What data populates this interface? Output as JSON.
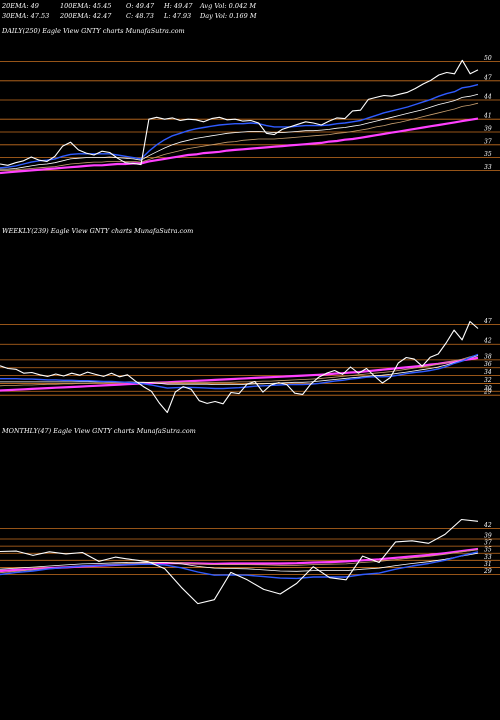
{
  "header": {
    "row1": [
      "20EMA: 49",
      "100EMA: 45.45",
      "O: 49.47",
      "H: 49.47",
      "Avg Vol: 0.042  M"
    ],
    "row2": [
      "30EMA: 47.53",
      "200EMA: 42.47",
      "C: 48.73",
      "L: 47.93",
      "Day Vol: 0.169 M"
    ]
  },
  "colors": {
    "background": "#000000",
    "price": "#ffffff",
    "ema_short": "#2f5bff",
    "ema_mid": "#ffffff",
    "ema_long": "#c8a070",
    "ema_200": "#ff40ff",
    "support_lines": "#c87020"
  },
  "chart_data": [
    {
      "type": "line",
      "title": "DAILY(250) Eagle   View  GNTY charts MunafaSutra.com",
      "ylim": [
        31.5,
        51.5
      ],
      "levels": [
        50,
        47,
        44,
        41,
        39,
        37,
        35,
        33
      ],
      "price": [
        34,
        33.8,
        34.2,
        34.5,
        35.1,
        34.6,
        34.4,
        35.2,
        36.8,
        37.4,
        36.2,
        35.7,
        35.4,
        36.0,
        35.8,
        34.9,
        34.2,
        34.1,
        33.9,
        41,
        41.3,
        41.0,
        41.2,
        40.8,
        41.0,
        40.9,
        40.6,
        41.1,
        41.3,
        40.9,
        41.0,
        40.7,
        40.8,
        40.4,
        38.8,
        38.6,
        39.4,
        39.8,
        40.2,
        40.6,
        40.4,
        40.1,
        40.7,
        41.2,
        41.1,
        42.3,
        42.4,
        44.1,
        44.4,
        44.7,
        44.6,
        44.9,
        45.2,
        45.8,
        46.5,
        47.1,
        47.9,
        48.3,
        48.1,
        50.2,
        48.1,
        48.7
      ],
      "ema_short": [
        33.4,
        33.5,
        33.7,
        34.0,
        34.3,
        34.5,
        34.6,
        34.8,
        35.2,
        35.5,
        35.6,
        35.6,
        35.6,
        35.6,
        35.6,
        35.4,
        35.2,
        35.0,
        34.8,
        36.0,
        37.0,
        37.8,
        38.4,
        38.8,
        39.2,
        39.5,
        39.7,
        39.9,
        40.1,
        40.2,
        40.3,
        40.3,
        40.4,
        40.3,
        40.0,
        39.8,
        39.8,
        39.8,
        39.9,
        40.0,
        40.0,
        40.0,
        40.1,
        40.3,
        40.4,
        40.6,
        40.8,
        41.2,
        41.6,
        42.0,
        42.3,
        42.6,
        42.9,
        43.3,
        43.7,
        44.1,
        44.6,
        45.0,
        45.3,
        45.9,
        46.1,
        46.4
      ],
      "ema_mid": [
        33.2,
        33.2,
        33.3,
        33.5,
        33.7,
        33.9,
        34.0,
        34.2,
        34.5,
        34.8,
        34.9,
        35.0,
        35.0,
        35.0,
        35.1,
        35.0,
        34.9,
        34.8,
        34.6,
        35.3,
        35.9,
        36.5,
        37.0,
        37.4,
        37.7,
        38.0,
        38.2,
        38.4,
        38.6,
        38.8,
        38.9,
        39.0,
        39.1,
        39.1,
        39.0,
        38.9,
        38.9,
        39.0,
        39.1,
        39.2,
        39.2,
        39.3,
        39.4,
        39.6,
        39.7,
        39.9,
        40.1,
        40.4,
        40.7,
        41.0,
        41.3,
        41.6,
        41.9,
        42.2,
        42.5,
        42.9,
        43.3,
        43.6,
        43.9,
        44.4,
        44.6,
        44.9
      ],
      "ema_long": [
        33.0,
        33.0,
        33.1,
        33.2,
        33.3,
        33.4,
        33.5,
        33.6,
        33.8,
        34.0,
        34.1,
        34.2,
        34.3,
        34.3,
        34.4,
        34.4,
        34.4,
        34.4,
        34.3,
        34.7,
        35.1,
        35.5,
        35.8,
        36.1,
        36.4,
        36.6,
        36.8,
        37.0,
        37.2,
        37.4,
        37.5,
        37.7,
        37.8,
        37.9,
        37.9,
        37.9,
        38.0,
        38.1,
        38.2,
        38.3,
        38.4,
        38.5,
        38.6,
        38.8,
        38.9,
        39.1,
        39.3,
        39.5,
        39.8,
        40.0,
        40.3,
        40.5,
        40.8,
        41.1,
        41.4,
        41.7,
        42.0,
        42.3,
        42.6,
        43.0,
        43.2,
        43.5
      ],
      "ema_200": [
        32.6,
        32.7,
        32.8,
        32.9,
        33.0,
        33.1,
        33.2,
        33.3,
        33.4,
        33.5,
        33.6,
        33.7,
        33.8,
        33.8,
        33.9,
        34.0,
        34.0,
        34.1,
        34.1,
        34.4,
        34.6,
        34.8,
        35.0,
        35.2,
        35.4,
        35.5,
        35.7,
        35.8,
        35.9,
        36.1,
        36.2,
        36.3,
        36.4,
        36.5,
        36.6,
        36.7,
        36.8,
        36.9,
        37.0,
        37.1,
        37.2,
        37.3,
        37.5,
        37.6,
        37.8,
        37.9,
        38.1,
        38.3,
        38.5,
        38.7,
        38.9,
        39.1,
        39.3,
        39.5,
        39.7,
        39.9,
        40.1,
        40.3,
        40.5,
        40.7,
        40.9,
        41.1
      ]
    },
    {
      "type": "line",
      "title": "WEEKLY(239) Eagle   View  GNTY charts MunafaSutra.com",
      "ylim": [
        26.5,
        52
      ],
      "levels": [
        47,
        42,
        38,
        36,
        34,
        32,
        30,
        29
      ],
      "price": [
        36.5,
        35.8,
        35.6,
        34.6,
        34.8,
        34.2,
        33.8,
        34.4,
        33.9,
        34.6,
        34.1,
        34.9,
        34.3,
        33.8,
        34.6,
        33.7,
        34.2,
        32.6,
        31.2,
        30.0,
        27.0,
        24.6,
        29.8,
        31.2,
        30.5,
        27.6,
        26.9,
        27.4,
        26.8,
        29.7,
        29.4,
        31.8,
        32.5,
        29.8,
        31.6,
        32.2,
        31.7,
        29.5,
        29.2,
        31.8,
        33.6,
        34.6,
        35.3,
        34.3,
        36.2,
        34.6,
        35.8,
        33.9,
        32.1,
        33.5,
        37.2,
        38.6,
        38.2,
        36.4,
        38.7,
        39.5,
        42.3,
        45.6,
        43.1,
        47.8,
        46.0
      ],
      "ema_short": [
        33.2,
        33.2,
        33.2,
        33.1,
        33.1,
        33.0,
        32.9,
        32.9,
        32.8,
        32.8,
        32.7,
        32.7,
        32.6,
        32.5,
        32.5,
        32.4,
        32.3,
        32.1,
        31.9,
        31.6,
        31.2,
        30.8,
        30.9,
        31.0,
        31.0,
        30.9,
        30.8,
        30.7,
        30.7,
        30.8,
        30.9,
        31.1,
        31.3,
        31.4,
        31.5,
        31.6,
        31.7,
        31.7,
        31.7,
        31.8,
        32.0,
        32.3,
        32.6,
        32.8,
        33.1,
        33.3,
        33.6,
        33.7,
        33.7,
        33.8,
        34.1,
        34.5,
        34.8,
        35.0,
        35.3,
        35.7,
        36.3,
        37.1,
        37.7,
        38.6,
        39.4
      ],
      "ema_mid": [
        32.4,
        32.4,
        32.4,
        32.4,
        32.4,
        32.4,
        32.4,
        32.4,
        32.4,
        32.4,
        32.4,
        32.4,
        32.4,
        32.4,
        32.4,
        32.4,
        32.4,
        32.3,
        32.3,
        32.2,
        32.0,
        31.8,
        31.8,
        31.8,
        31.8,
        31.8,
        31.8,
        31.7,
        31.7,
        31.7,
        31.7,
        31.8,
        31.9,
        31.9,
        32.0,
        32.1,
        32.2,
        32.3,
        32.3,
        32.4,
        32.6,
        32.8,
        33.0,
        33.2,
        33.4,
        33.6,
        33.8,
        34.0,
        34.1,
        34.3,
        34.6,
        34.9,
        35.2,
        35.5,
        35.8,
        36.2,
        36.7,
        37.3,
        37.8,
        38.5,
        39.1
      ],
      "ema_long": [
        31.4,
        31.5,
        31.5,
        31.6,
        31.6,
        31.7,
        31.8,
        31.8,
        31.9,
        31.9,
        32.0,
        32.0,
        32.1,
        32.1,
        32.2,
        32.2,
        32.3,
        32.3,
        32.3,
        32.3,
        32.3,
        32.2,
        32.2,
        32.3,
        32.3,
        32.3,
        32.3,
        32.3,
        32.3,
        32.3,
        32.4,
        32.4,
        32.5,
        32.6,
        32.6,
        32.7,
        32.8,
        32.9,
        33.0,
        33.1,
        33.2,
        33.4,
        33.6,
        33.8,
        34.0,
        34.2,
        34.4,
        34.6,
        34.8,
        35.0,
        35.3,
        35.6,
        35.9,
        36.2,
        36.5,
        36.9,
        37.3,
        37.8,
        38.2,
        38.8,
        39.3
      ],
      "ema_200": [
        30.2,
        30.3,
        30.4,
        30.5,
        30.6,
        30.7,
        30.8,
        30.9,
        31.0,
        31.1,
        31.2,
        31.3,
        31.4,
        31.5,
        31.6,
        31.7,
        31.8,
        31.9,
        32.0,
        32.1,
        32.2,
        32.3,
        32.4,
        32.5,
        32.6,
        32.7,
        32.8,
        32.9,
        33.0,
        33.1,
        33.2,
        33.3,
        33.4,
        33.5,
        33.6,
        33.7,
        33.8,
        33.9,
        34.0,
        34.1,
        34.2,
        34.3,
        34.5,
        34.6,
        34.8,
        34.9,
        35.1,
        35.3,
        35.5,
        35.7,
        35.9,
        36.1,
        36.3,
        36.5,
        36.8,
        37.0,
        37.3,
        37.6,
        37.9,
        38.2,
        38.5
      ]
    },
    {
      "type": "line",
      "title": "MONTHLY(47) Eagle   View  GNTY charts MunafaSutra.com",
      "ylim": [
        19,
        50
      ],
      "levels": [
        42,
        39,
        37,
        35,
        33,
        31,
        29
      ],
      "price": [
        35.5,
        35.6,
        34.4,
        35.4,
        34.8,
        35.2,
        32.7,
        33.9,
        33.2,
        32.6,
        30.6,
        25.4,
        20.8,
        21.9,
        29.6,
        27.5,
        24.8,
        23.5,
        26.5,
        31.2,
        28.1,
        27.5,
        34.2,
        32.4,
        38.2,
        38.5,
        37.8,
        40.3,
        44.5,
        44.0
      ],
      "ema_short": [
        29.0,
        29.6,
        30.0,
        30.6,
        31.0,
        31.4,
        31.5,
        31.7,
        31.8,
        31.9,
        31.7,
        30.9,
        29.7,
        28.8,
        28.9,
        28.8,
        28.4,
        28.0,
        27.9,
        28.3,
        28.3,
        28.3,
        29.0,
        29.4,
        30.5,
        31.4,
        32.1,
        33.0,
        34.3,
        35.4
      ],
      "ema_mid": [
        30.5,
        30.8,
        31.1,
        31.4,
        31.7,
        32.0,
        32.1,
        32.3,
        32.4,
        32.5,
        32.4,
        32.0,
        31.3,
        30.8,
        30.7,
        30.6,
        30.3,
        30.0,
        29.9,
        30.1,
        30.1,
        30.1,
        30.5,
        30.8,
        31.5,
        32.1,
        32.6,
        33.3,
        34.2,
        35.0
      ],
      "ema_long": [
        29.5,
        29.9,
        30.3,
        30.7,
        31.0,
        31.4,
        31.6,
        31.9,
        32.1,
        32.3,
        32.4,
        32.3,
        32.0,
        31.8,
        31.8,
        31.8,
        31.7,
        31.6,
        31.6,
        31.8,
        31.9,
        32.0,
        32.4,
        32.7,
        33.2,
        33.7,
        34.1,
        34.7,
        35.4,
        36.0
      ],
      "ema_200": [
        30.0,
        30.3,
        30.5,
        30.8,
        31.0,
        31.3,
        31.5,
        31.7,
        31.9,
        32.1,
        32.2,
        32.2,
        32.1,
        32.0,
        32.1,
        32.1,
        32.1,
        32.1,
        32.2,
        32.4,
        32.5,
        32.7,
        33.0,
        33.3,
        33.7,
        34.1,
        34.5,
        35.0,
        35.6,
        36.2
      ]
    }
  ]
}
